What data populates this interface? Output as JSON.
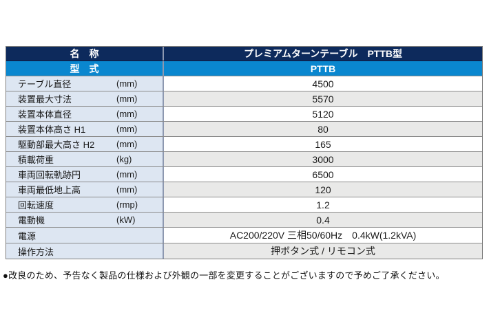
{
  "header": {
    "name_label": "名　称",
    "name_value": "プレミアムターンテーブル　PTTB型",
    "model_label": "型　式",
    "model_value": "PTTB"
  },
  "rows": [
    {
      "label": "テーブル直径",
      "unit": "(mm)",
      "value": "4500"
    },
    {
      "label": "装置最大寸法",
      "unit": "(mm)",
      "value": "5570"
    },
    {
      "label": "装置本体直径",
      "unit": "(mm)",
      "value": "5120"
    },
    {
      "label": "装置本体高さ H1",
      "unit": "(mm)",
      "value": "80"
    },
    {
      "label": "駆動部最大高さ H2",
      "unit": "(mm)",
      "value": "165"
    },
    {
      "label": "積載荷重",
      "unit": "(kg)",
      "value": "3000"
    },
    {
      "label": "車両回転軌跡円",
      "unit": "(mm)",
      "value": "6500"
    },
    {
      "label": "車両最低地上高",
      "unit": "(mm)",
      "value": "120"
    },
    {
      "label": "回転速度",
      "unit": "(rmp)",
      "value": "1.2"
    },
    {
      "label": "電動機",
      "unit": "(kW)",
      "value": "0.4"
    },
    {
      "label": "電源",
      "unit": "",
      "value": "AC200/220V 三相50/60Hz　0.4kW(1.2kVA)"
    },
    {
      "label": "操作方法",
      "unit": "",
      "value": "押ボタン式 / リモコン式"
    }
  ],
  "footer": {
    "note": "●改良のため、予告なく製品の仕様および外観の一部を変更することがございますので予めご了承ください。"
  },
  "colors": {
    "header_navy": "#0d2a5c",
    "model_blue": "#0a87cf",
    "label_cell_blue": "#dde6f2",
    "alt_row_gray": "#e9e9e8",
    "border_gray": "#8a8a8a",
    "column_divider": "#8d98b0"
  }
}
